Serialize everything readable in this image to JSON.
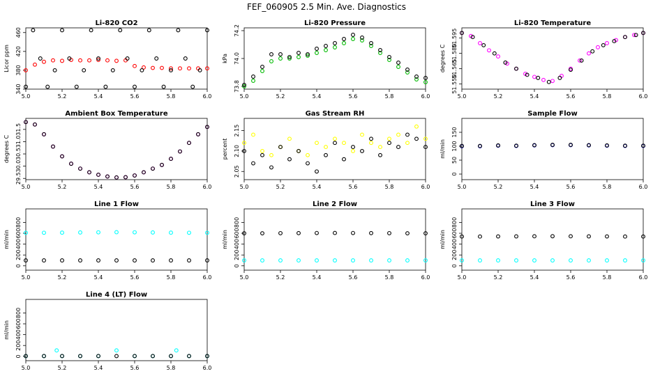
{
  "figure": {
    "title": "FEF_060905  2.5 Min. Ave. Diagnostics"
  },
  "colors": {
    "co2": "#ff0000",
    "pressure": "#00bb00",
    "licor_temp": "#ff00ff",
    "box_temp": "#ff00ff",
    "rh": "#ffff00",
    "sample_flow": "#0000cc",
    "line_flow": "#00ffff",
    "overlay": "#000000"
  },
  "chart_data": [
    {
      "type": "scatter",
      "title": "Li-820 CO2",
      "ylabel": "Licor ppm",
      "xlim": [
        5.0,
        6.0
      ],
      "ylim": [
        340,
        470
      ],
      "xticks": [
        "5.0",
        "5.2",
        "5.4",
        "5.6",
        "5.8",
        "6.0"
      ],
      "yticks": [
        "340",
        "380",
        "420",
        "460"
      ],
      "series": [
        {
          "name": "CO2",
          "color": "red",
          "x": [
            5.0,
            5.05,
            5.1,
            5.15,
            5.2,
            5.25,
            5.3,
            5.35,
            5.4,
            5.45,
            5.5,
            5.55,
            5.6,
            5.65,
            5.7,
            5.75,
            5.8,
            5.85,
            5.9,
            5.95,
            6.0
          ],
          "y": [
            380,
            392,
            398,
            401,
            400,
            402,
            401,
            401,
            402,
            401,
            400,
            401,
            389,
            386,
            385,
            385,
            384,
            384,
            384,
            384,
            384
          ]
        },
        {
          "name": "overlay",
          "color": "black",
          "x": [
            5.0,
            5.04,
            5.08,
            5.12,
            5.16,
            5.2,
            5.24,
            5.28,
            5.32,
            5.36,
            5.4,
            5.44,
            5.48,
            5.52,
            5.56,
            5.6,
            5.64,
            5.68,
            5.72,
            5.76,
            5.8,
            5.84,
            5.88,
            5.92,
            5.96,
            6.0
          ],
          "y": [
            345,
            465,
            405,
            345,
            380,
            465,
            405,
            345,
            380,
            465,
            405,
            345,
            380,
            465,
            405,
            345,
            380,
            465,
            405,
            345,
            380,
            465,
            405,
            345,
            380,
            465
          ]
        }
      ]
    },
    {
      "type": "scatter",
      "title": "Li-820 Pressure",
      "ylabel": "kPa",
      "xlim": [
        5.0,
        6.0
      ],
      "ylim": [
        73.78,
        74.22
      ],
      "xticks": [
        "5.0",
        "5.2",
        "5.4",
        "5.6",
        "5.8",
        "6.0"
      ],
      "yticks": [
        "73.8",
        "74.0",
        "74.2"
      ],
      "series": [
        {
          "name": "pressure",
          "color": "green",
          "x": [
            5.0,
            5.05,
            5.1,
            5.15,
            5.2,
            5.25,
            5.3,
            5.35,
            5.4,
            5.45,
            5.5,
            5.55,
            5.6,
            5.65,
            5.7,
            5.75,
            5.8,
            5.85,
            5.9,
            5.95,
            6.0
          ],
          "y": [
            73.8,
            73.84,
            73.91,
            73.98,
            74.0,
            74.0,
            74.01,
            74.02,
            74.04,
            74.06,
            74.08,
            74.11,
            74.14,
            74.13,
            74.09,
            74.04,
            73.99,
            73.94,
            73.9,
            73.85,
            73.83
          ]
        },
        {
          "name": "overlay",
          "color": "black",
          "x": [
            5.0,
            5.05,
            5.1,
            5.15,
            5.2,
            5.25,
            5.3,
            5.35,
            5.4,
            5.45,
            5.5,
            5.55,
            5.6,
            5.65,
            5.7,
            5.75,
            5.8,
            5.85,
            5.9,
            5.95,
            6.0
          ],
          "y": [
            73.81,
            73.87,
            73.94,
            74.03,
            74.03,
            74.01,
            74.04,
            74.03,
            74.07,
            74.09,
            74.11,
            74.14,
            74.17,
            74.15,
            74.11,
            74.06,
            74.01,
            73.97,
            73.92,
            73.87,
            73.86
          ]
        }
      ]
    },
    {
      "type": "scatter",
      "title": "Li-820 Temperature",
      "ylabel": "degrees C",
      "xlim": [
        5.0,
        6.0
      ],
      "ylim": [
        51.545,
        51.605
      ],
      "xticks": [
        "5.0",
        "5.2",
        "5.4",
        "5.6",
        "5.8",
        "6.0"
      ],
      "yticks": [
        "51.550",
        "51.565",
        "51.580",
        "51.595"
      ],
      "series": [
        {
          "name": "temperature",
          "color": "magenta",
          "x": [
            5.0,
            5.05,
            5.1,
            5.15,
            5.2,
            5.25,
            5.3,
            5.35,
            5.4,
            5.45,
            5.5,
            5.55,
            5.6,
            5.65,
            5.7,
            5.75,
            5.8,
            5.85,
            5.9,
            5.95,
            6.0
          ],
          "y": [
            51.6,
            51.597,
            51.59,
            51.583,
            51.577,
            51.57,
            51.565,
            51.56,
            51.557,
            51.554,
            51.553,
            51.558,
            51.565,
            51.573,
            51.58,
            51.586,
            51.59,
            51.593,
            51.596,
            51.598,
            51.6
          ]
        },
        {
          "name": "overlay",
          "color": "black",
          "x": [
            5.0,
            5.06,
            5.12,
            5.18,
            5.24,
            5.3,
            5.36,
            5.42,
            5.48,
            5.54,
            5.6,
            5.66,
            5.72,
            5.78,
            5.84,
            5.9,
            5.96,
            6.0
          ],
          "y": [
            51.6,
            51.596,
            51.588,
            51.58,
            51.571,
            51.565,
            51.559,
            51.556,
            51.552,
            51.556,
            51.564,
            51.573,
            51.582,
            51.588,
            51.592,
            51.596,
            51.598,
            51.6
          ]
        }
      ]
    },
    {
      "type": "scatter",
      "title": "Ambient Box Temperature",
      "ylabel": "degrees C",
      "xlim": [
        5.0,
        6.0
      ],
      "ylim": [
        29.45,
        31.95
      ],
      "xticks": [
        "5.0",
        "5.2",
        "5.4",
        "5.6",
        "5.8",
        "6.0"
      ],
      "yticks": [
        "29.5",
        "30.0",
        "30.5",
        "31.0",
        "31.5"
      ],
      "series": [
        {
          "name": "temperature",
          "color": "magenta",
          "x": [
            5.0,
            5.05,
            5.1,
            5.15,
            5.2,
            5.25,
            5.3,
            5.35,
            5.4,
            5.45,
            5.5,
            5.55,
            5.6,
            5.65,
            5.7,
            5.75,
            5.8,
            5.85,
            5.9,
            5.95,
            6.0
          ],
          "y": [
            31.8,
            31.7,
            31.3,
            30.8,
            30.4,
            30.1,
            29.9,
            29.75,
            29.65,
            29.58,
            29.54,
            29.55,
            29.62,
            29.75,
            29.9,
            30.05,
            30.3,
            30.6,
            30.95,
            31.3,
            31.6
          ]
        },
        {
          "name": "overlay",
          "color": "black",
          "x": [
            5.0,
            5.05,
            5.1,
            5.15,
            5.2,
            5.25,
            5.3,
            5.35,
            5.4,
            5.45,
            5.5,
            5.55,
            5.6,
            5.65,
            5.7,
            5.75,
            5.8,
            5.85,
            5.9,
            5.95,
            6.0
          ],
          "y": [
            31.8,
            31.7,
            31.3,
            30.8,
            30.4,
            30.1,
            29.9,
            29.75,
            29.65,
            29.58,
            29.54,
            29.55,
            29.62,
            29.75,
            29.9,
            30.05,
            30.3,
            30.6,
            30.95,
            31.3,
            31.6
          ]
        }
      ]
    },
    {
      "type": "scatter",
      "title": "Gas Stream RH",
      "ylabel": "percent",
      "xlim": [
        5.0,
        6.0
      ],
      "ylim": [
        2.03,
        2.18
      ],
      "xticks": [
        "5.0",
        "5.2",
        "5.4",
        "5.6",
        "5.8",
        "6.0"
      ],
      "yticks": [
        "2.05",
        "2.10",
        "2.15"
      ],
      "series": [
        {
          "name": "RH",
          "color": "yellow",
          "x": [
            5.0,
            5.05,
            5.1,
            5.15,
            5.2,
            5.25,
            5.3,
            5.35,
            5.4,
            5.45,
            5.5,
            5.55,
            5.6,
            5.65,
            5.7,
            5.75,
            5.8,
            5.85,
            5.9,
            5.95,
            6.0
          ],
          "y": [
            2.12,
            2.14,
            2.1,
            2.09,
            2.11,
            2.13,
            2.1,
            2.09,
            2.12,
            2.11,
            2.13,
            2.12,
            2.1,
            2.14,
            2.12,
            2.11,
            2.13,
            2.14,
            2.12,
            2.16,
            2.13
          ]
        },
        {
          "name": "overlay",
          "color": "black",
          "x": [
            5.0,
            5.05,
            5.1,
            5.15,
            5.2,
            5.25,
            5.3,
            5.35,
            5.4,
            5.45,
            5.5,
            5.55,
            5.6,
            5.65,
            5.7,
            5.75,
            5.8,
            5.85,
            5.9,
            5.95,
            6.0
          ],
          "y": [
            2.1,
            2.07,
            2.09,
            2.06,
            2.11,
            2.08,
            2.1,
            2.07,
            2.05,
            2.09,
            2.12,
            2.08,
            2.11,
            2.1,
            2.13,
            2.09,
            2.12,
            2.11,
            2.14,
            2.13,
            2.11
          ]
        }
      ]
    },
    {
      "type": "scatter",
      "title": "Sample Flow",
      "ylabel": "ml/min",
      "xlim": [
        5.0,
        6.0
      ],
      "ylim": [
        -20,
        200
      ],
      "xticks": [
        "5.0",
        "5.2",
        "5.4",
        "5.6",
        "5.8",
        "6.0"
      ],
      "yticks": [
        "0",
        "50",
        "100",
        "150"
      ],
      "series": [
        {
          "name": "flow",
          "color": "blue",
          "x": [
            5.0,
            5.1,
            5.2,
            5.3,
            5.4,
            5.5,
            5.6,
            5.7,
            5.8,
            5.9,
            6.0
          ],
          "y": [
            100,
            100,
            102,
            101,
            103,
            104,
            104,
            103,
            102,
            101,
            101
          ]
        },
        {
          "name": "overlay",
          "color": "black",
          "x": [
            5.0,
            5.1,
            5.2,
            5.3,
            5.4,
            5.5,
            5.6,
            5.7,
            5.8,
            5.9,
            6.0
          ],
          "y": [
            101,
            101,
            103,
            102,
            104,
            105,
            105,
            104,
            103,
            102,
            102
          ]
        }
      ]
    },
    {
      "type": "scatter",
      "title": "Line 1 Flow",
      "ylabel": "ml/min",
      "xlim": [
        5.0,
        6.0
      ],
      "ylim": [
        -80,
        1050
      ],
      "xticks": [
        "5.0",
        "5.2",
        "5.4",
        "5.6",
        "5.8",
        "6.0"
      ],
      "yticks": [
        "0",
        "200",
        "400",
        "600",
        "800"
      ],
      "series": [
        {
          "name": "line flow",
          "color": "cyan",
          "x": [
            5.0,
            5.1,
            5.2,
            5.3,
            5.4,
            5.5,
            5.6,
            5.7,
            5.8,
            5.9,
            6.0
          ],
          "y": [
            610,
            610,
            612,
            615,
            618,
            620,
            618,
            615,
            612,
            610,
            610
          ]
        },
        {
          "name": "overlay",
          "color": "black",
          "x": [
            5.0,
            5.1,
            5.2,
            5.3,
            5.4,
            5.5,
            5.6,
            5.7,
            5.8,
            5.9,
            6.0
          ],
          "y": [
            100,
            100,
            100,
            100,
            100,
            100,
            100,
            100,
            100,
            100,
            100
          ]
        }
      ]
    },
    {
      "type": "scatter",
      "title": "Line 2 Flow",
      "ylabel": "ml/min",
      "xlim": [
        5.0,
        6.0
      ],
      "ylim": [
        -80,
        1050
      ],
      "xticks": [
        "5.0",
        "5.2",
        "5.4",
        "5.6",
        "5.8",
        "6.0"
      ],
      "yticks": [
        "0",
        "200",
        "400",
        "600",
        "800"
      ],
      "series": [
        {
          "name": "line flow",
          "color": "cyan",
          "x": [
            5.0,
            5.1,
            5.2,
            5.3,
            5.4,
            5.5,
            5.6,
            5.7,
            5.8,
            5.9,
            6.0
          ],
          "y": [
            100,
            100,
            100,
            100,
            100,
            100,
            100,
            100,
            100,
            100,
            100
          ]
        },
        {
          "name": "overlay",
          "color": "black",
          "x": [
            5.0,
            5.1,
            5.2,
            5.3,
            5.4,
            5.5,
            5.6,
            5.7,
            5.8,
            5.9,
            6.0
          ],
          "y": [
            600,
            600,
            602,
            603,
            605,
            606,
            605,
            603,
            602,
            600,
            600
          ]
        }
      ]
    },
    {
      "type": "scatter",
      "title": "Line 3 Flow",
      "ylabel": "ml/min",
      "xlim": [
        5.0,
        6.0
      ],
      "ylim": [
        -80,
        1050
      ],
      "xticks": [
        "5.0",
        "5.2",
        "5.4",
        "5.6",
        "5.8",
        "6.0"
      ],
      "yticks": [
        "0",
        "200",
        "400",
        "600",
        "800"
      ],
      "series": [
        {
          "name": "line flow",
          "color": "cyan",
          "x": [
            5.0,
            5.1,
            5.2,
            5.3,
            5.4,
            5.5,
            5.6,
            5.7,
            5.8,
            5.9,
            6.0
          ],
          "y": [
            100,
            100,
            100,
            100,
            100,
            100,
            100,
            100,
            100,
            100,
            100
          ]
        },
        {
          "name": "overlay",
          "color": "black",
          "x": [
            5.0,
            5.1,
            5.2,
            5.3,
            5.4,
            5.5,
            5.6,
            5.7,
            5.8,
            5.9,
            6.0
          ],
          "y": [
            540,
            540,
            542,
            543,
            545,
            546,
            545,
            543,
            542,
            540,
            540
          ]
        }
      ]
    },
    {
      "type": "scatter",
      "title": "Line 4 (LT) Flow",
      "ylabel": "ml/min",
      "xlim": [
        5.0,
        6.0
      ],
      "ylim": [
        -80,
        1050
      ],
      "xticks": [
        "5.0",
        "5.2",
        "5.4",
        "5.6",
        "5.8",
        "6.0"
      ],
      "yticks": [
        "0",
        "200",
        "400",
        "600",
        "800"
      ],
      "series": [
        {
          "name": "line flow",
          "color": "cyan",
          "x": [
            5.0,
            5.1,
            5.17,
            5.2,
            5.3,
            5.4,
            5.5,
            5.6,
            5.7,
            5.8,
            5.83,
            5.9,
            6.0
          ],
          "y": [
            5,
            5,
            110,
            5,
            5,
            5,
            110,
            5,
            5,
            5,
            110,
            5,
            5
          ]
        },
        {
          "name": "overlay",
          "color": "black",
          "x": [
            5.0,
            5.1,
            5.2,
            5.3,
            5.4,
            5.5,
            5.6,
            5.7,
            5.8,
            5.9,
            6.0
          ],
          "y": [
            5,
            5,
            5,
            5,
            5,
            5,
            5,
            5,
            5,
            5,
            5
          ]
        }
      ]
    }
  ]
}
